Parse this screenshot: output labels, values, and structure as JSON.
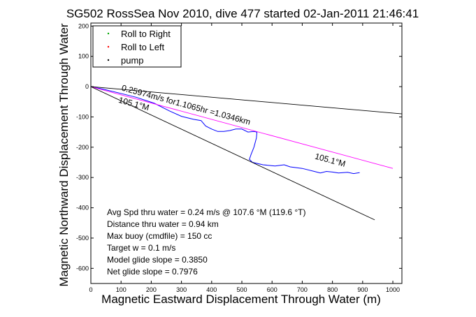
{
  "chart_data": {
    "type": "line",
    "title": "SG502 RossSea Nov 2010, dive 477 started 02-Jan-2011 21:46:41",
    "xlabel": "Magnetic Eastward Displacement Through Water (m)",
    "ylabel": "Magnetic Northward Displacement Through Water",
    "xlim": [
      0,
      1030
    ],
    "ylim": [
      -650,
      210
    ],
    "x_ticks": [
      0,
      100,
      200,
      300,
      400,
      500,
      600,
      700,
      800,
      900,
      1000
    ],
    "y_ticks": [
      200,
      100,
      0,
      -100,
      -200,
      -300,
      -400,
      -500,
      -600
    ],
    "grid": false,
    "legend_position": "top-left",
    "legend": [
      {
        "label": "Roll to Right",
        "color": "#00aa00"
      },
      {
        "label": "Roll to Left",
        "color": "#ff0000"
      },
      {
        "label": "pump",
        "color": "#000000"
      }
    ],
    "series": [
      {
        "role": "track",
        "color": "#0000ff",
        "points": [
          [
            0,
            0
          ],
          [
            40,
            -8
          ],
          [
            90,
            -20
          ],
          [
            150,
            -35
          ],
          [
            210,
            -55
          ],
          [
            260,
            -80
          ],
          [
            300,
            -98
          ],
          [
            340,
            -108
          ],
          [
            365,
            -112
          ],
          [
            380,
            -130
          ],
          [
            400,
            -140
          ],
          [
            420,
            -148
          ],
          [
            440,
            -148
          ],
          [
            460,
            -145
          ],
          [
            480,
            -140
          ],
          [
            500,
            -140
          ],
          [
            520,
            -150
          ],
          [
            540,
            -148
          ],
          [
            550,
            -150
          ],
          [
            548,
            -170
          ],
          [
            540,
            -200
          ],
          [
            530,
            -225
          ],
          [
            525,
            -240
          ],
          [
            535,
            -250
          ],
          [
            570,
            -258
          ],
          [
            610,
            -262
          ],
          [
            640,
            -258
          ],
          [
            660,
            -265
          ],
          [
            700,
            -270
          ],
          [
            740,
            -280
          ],
          [
            760,
            -285
          ],
          [
            780,
            -280
          ],
          [
            800,
            -282
          ],
          [
            820,
            -285
          ],
          [
            850,
            -283
          ],
          [
            870,
            -287
          ],
          [
            890,
            -284
          ]
        ]
      },
      {
        "role": "net-course",
        "color": "#ff00ff",
        "points": [
          [
            0,
            0
          ],
          [
            1000,
            -270
          ]
        ]
      },
      {
        "role": "heading-line",
        "color": "#000000",
        "points": [
          [
            0,
            0
          ],
          [
            1030,
            -90
          ]
        ]
      },
      {
        "role": "heading-line",
        "color": "#000000",
        "points": [
          [
            0,
            0
          ],
          [
            940,
            -440
          ]
        ]
      }
    ],
    "annotations": [
      {
        "text": "0.25974m/s for1.1065hr =1.0346km",
        "x": 100,
        "y": -12,
        "angle_deg": 15.1
      },
      {
        "text": "105.1°M",
        "x": 90,
        "y": -52,
        "angle_deg": 15.1
      },
      {
        "text": "105.1°M",
        "x": 740,
        "y": -238,
        "angle_deg": 15.1
      }
    ],
    "info_lines": [
      "Avg Spd thru water =  0.24 m/s @ 107.6    °M (119.6 °T)",
      "Distance thru water =  0.94 km",
      "Max buoy (cmdfile) = 150 cc",
      "Target w = 0.1 m/s",
      "Model glide slope = 0.3850",
      "Net glide slope = 0.7976"
    ]
  }
}
